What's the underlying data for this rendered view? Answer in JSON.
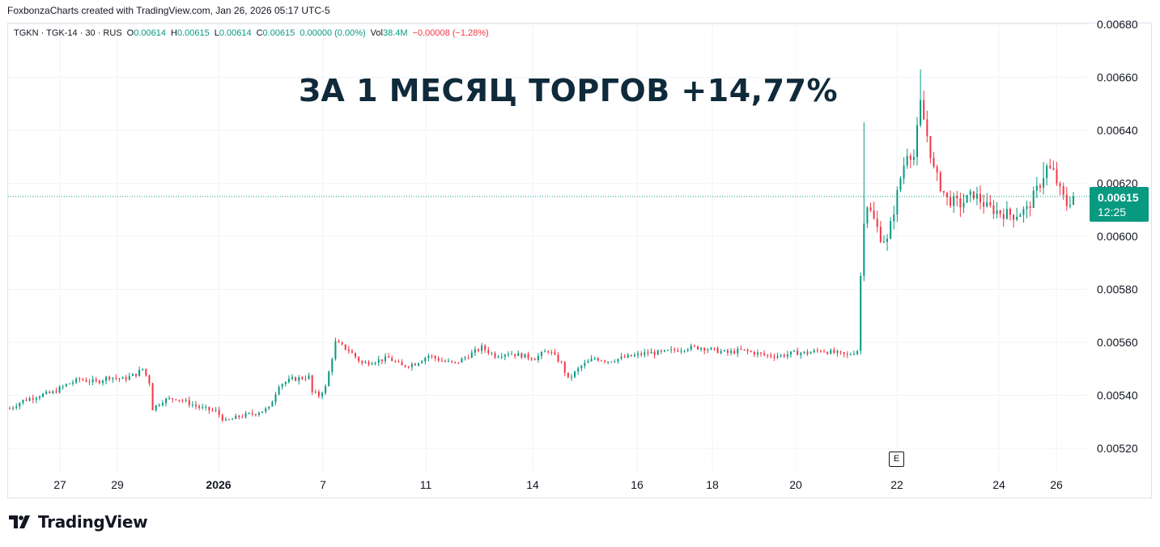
{
  "header": {
    "credit": "FoxbonzaCharts created with TradingView.com, Jan 26, 2026 05:17 UTC-5"
  },
  "legend": {
    "symbol": "TGKN · TGK-14 · 30 · RUS",
    "open_label": "O",
    "open": "0.00614",
    "high_label": "H",
    "high": "0.00615",
    "low_label": "L",
    "low": "0.00614",
    "close_label": "C",
    "close": "0.00615",
    "change": "0.00000 (0.00%)",
    "vol_label": "Vol",
    "vol": "38.4M",
    "vol_change": "−0.00008 (−1.28%)"
  },
  "headline": "ЗА 1 МЕСЯЦ ТОРГОВ +14,77%",
  "price_badge": {
    "price": "0.00615",
    "countdown": "12:25"
  },
  "event_marker": "E",
  "brand": {
    "name": "TradingView"
  },
  "colors": {
    "up": "#089981",
    "down": "#f23645",
    "grid": "#f0f3fa",
    "text": "#131722",
    "headline": "#0f2a3a"
  },
  "chart_data": {
    "type": "candlestick",
    "title": "ЗА 1 МЕСЯЦ ТОРГОВ +14,77%",
    "symbol": "TGKN",
    "interval": "30",
    "ylim": [
      0.00512,
      0.0068
    ],
    "y_ticks": [
      "0.00680",
      "0.00660",
      "0.00640",
      "0.00620",
      "0.00600",
      "0.00580",
      "0.00560",
      "0.00540",
      "0.00520"
    ],
    "x_ticks": [
      {
        "label": "27",
        "bold": false
      },
      {
        "label": "29",
        "bold": false
      },
      {
        "label": "2026",
        "bold": true
      },
      {
        "label": "7",
        "bold": false
      },
      {
        "label": "11",
        "bold": false
      },
      {
        "label": "14",
        "bold": false
      },
      {
        "label": "16",
        "bold": false
      },
      {
        "label": "18",
        "bold": false
      },
      {
        "label": "20",
        "bold": false
      },
      {
        "label": "22",
        "bold": false
      },
      {
        "label": "24",
        "bold": false
      },
      {
        "label": "26",
        "bold": false
      }
    ],
    "last_price": 0.00615,
    "price_path": [
      [
        0,
        0.00535
      ],
      [
        4,
        0.00538
      ],
      [
        9,
        0.0054
      ],
      [
        13,
        0.00541
      ],
      [
        17,
        0.00544
      ],
      [
        21,
        0.00546
      ],
      [
        26,
        0.00545
      ],
      [
        30,
        0.00547
      ],
      [
        34,
        0.00546
      ],
      [
        38,
        0.00548
      ],
      [
        40,
        0.0055
      ],
      [
        42,
        0.00545
      ],
      [
        43,
        0.00535
      ],
      [
        46,
        0.00538
      ],
      [
        50,
        0.00539
      ],
      [
        54,
        0.00537
      ],
      [
        58,
        0.00535
      ],
      [
        62,
        0.00534
      ],
      [
        65,
        0.0053
      ],
      [
        69,
        0.00532
      ],
      [
        73,
        0.00533
      ],
      [
        78,
        0.00535
      ],
      [
        81,
        0.00544
      ],
      [
        85,
        0.00546
      ],
      [
        90,
        0.00547
      ],
      [
        91,
        0.00541
      ],
      [
        93,
        0.0054
      ],
      [
        95,
        0.00543
      ],
      [
        98,
        0.0056
      ],
      [
        102,
        0.00557
      ],
      [
        106,
        0.00552
      ],
      [
        110,
        0.00553
      ],
      [
        114,
        0.00554
      ],
      [
        118,
        0.00551
      ],
      [
        122,
        0.00552
      ],
      [
        126,
        0.00555
      ],
      [
        130,
        0.00553
      ],
      [
        134,
        0.00552
      ],
      [
        138,
        0.00555
      ],
      [
        142,
        0.00558
      ],
      [
        146,
        0.00555
      ],
      [
        150,
        0.00556
      ],
      [
        154,
        0.00555
      ],
      [
        158,
        0.00554
      ],
      [
        162,
        0.00557
      ],
      [
        166,
        0.00552
      ],
      [
        168,
        0.00546
      ],
      [
        172,
        0.00551
      ],
      [
        176,
        0.00554
      ],
      [
        180,
        0.00553
      ],
      [
        184,
        0.00554
      ],
      [
        188,
        0.00555
      ],
      [
        192,
        0.00556
      ],
      [
        196,
        0.00556
      ],
      [
        200,
        0.00557
      ],
      [
        204,
        0.00558
      ],
      [
        208,
        0.00558
      ],
      [
        212,
        0.00557
      ],
      [
        216,
        0.00556
      ],
      [
        220,
        0.00557
      ],
      [
        224,
        0.00556
      ],
      [
        228,
        0.00555
      ],
      [
        232,
        0.00555
      ],
      [
        236,
        0.00556
      ],
      [
        240,
        0.00556
      ],
      [
        244,
        0.00557
      ],
      [
        248,
        0.00556
      ],
      [
        252,
        0.00555
      ],
      [
        255,
        0.00557
      ],
      [
        256,
        0.00585
      ],
      [
        257,
        0.00607
      ],
      [
        258,
        0.00612
      ],
      [
        260,
        0.00606
      ],
      [
        262,
        0.006
      ],
      [
        264,
        0.00598
      ],
      [
        266,
        0.0061
      ],
      [
        268,
        0.00622
      ],
      [
        270,
        0.00632
      ],
      [
        272,
        0.0063
      ],
      [
        274,
        0.0065
      ],
      [
        276,
        0.00638
      ],
      [
        278,
        0.00625
      ],
      [
        280,
        0.00619
      ],
      [
        282,
        0.00614
      ],
      [
        286,
        0.00612
      ],
      [
        290,
        0.00616
      ],
      [
        294,
        0.00611
      ],
      [
        298,
        0.00609
      ],
      [
        302,
        0.00608
      ],
      [
        306,
        0.0061
      ],
      [
        310,
        0.0062
      ],
      [
        312,
        0.00626
      ],
      [
        314,
        0.00624
      ],
      [
        316,
        0.00617
      ],
      [
        318,
        0.00612
      ],
      [
        320,
        0.00615
      ]
    ],
    "spikes": [
      [
        257,
        0.00643
      ],
      [
        274,
        0.00663
      ],
      [
        311,
        0.00628
      ]
    ]
  }
}
